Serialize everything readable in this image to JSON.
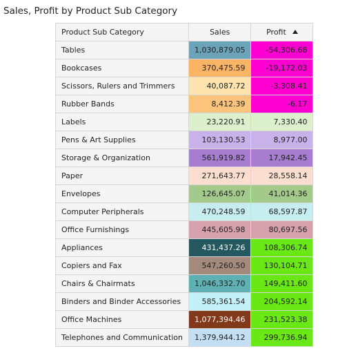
{
  "title": "Sales, Profit by Product Sub Category",
  "columns": {
    "category": "Product Sub Category",
    "sales": "Sales",
    "profit": "Profit"
  },
  "sort": {
    "column": "profit",
    "direction": "ascending",
    "icon": "sort-ascending-icon"
  },
  "rows": [
    {
      "category": "Tables",
      "sales": "1,030,879.05",
      "profit": "-54,306.68",
      "sales_color": "#6ba3b8",
      "profit_color": "#ff00d0",
      "sales_text_color": "#222222",
      "profit_text_color": "#222222"
    },
    {
      "category": "Bookcases",
      "sales": "370,475.59",
      "profit": "-19,172.03",
      "sales_color": "#fbb366",
      "profit_color": "#ff00d0",
      "sales_text_color": "#222222",
      "profit_text_color": "#222222"
    },
    {
      "category": "Scissors, Rulers and Trimmers",
      "sales": "40,087.72",
      "profit": "-3,308.41",
      "sales_color": "#fde4ae",
      "profit_color": "#ff00d0",
      "sales_text_color": "#222222",
      "profit_text_color": "#222222"
    },
    {
      "category": "Rubber Bands",
      "sales": "8,412.39",
      "profit": "-6.17",
      "sales_color": "#fdc47d",
      "profit_color": "#ff00d0",
      "sales_text_color": "#222222",
      "profit_text_color": "#222222"
    },
    {
      "category": "Labels",
      "sales": "23,220.91",
      "profit": "7,330.40",
      "sales_color": "#dcf0cd",
      "profit_color": "#dcf0cd",
      "sales_text_color": "#222222",
      "profit_text_color": "#222222"
    },
    {
      "category": "Pens & Art Supplies",
      "sales": "103,130.53",
      "profit": "8,977.00",
      "sales_color": "#c9b1ea",
      "profit_color": "#c9b1ea",
      "sales_text_color": "#222222",
      "profit_text_color": "#222222"
    },
    {
      "category": "Storage & Organization",
      "sales": "561,919.82",
      "profit": "17,942.45",
      "sales_color": "#a77dd0",
      "profit_color": "#a77dd0",
      "sales_text_color": "#222222",
      "profit_text_color": "#222222"
    },
    {
      "category": "Paper",
      "sales": "271,643.77",
      "profit": "28,558.14",
      "sales_color": "#fbdecf",
      "profit_color": "#fbdecf",
      "sales_text_color": "#222222",
      "profit_text_color": "#222222"
    },
    {
      "category": "Envelopes",
      "sales": "126,645.07",
      "profit": "41,014.36",
      "sales_color": "#a3c98b",
      "profit_color": "#a3c98b",
      "sales_text_color": "#222222",
      "profit_text_color": "#222222"
    },
    {
      "category": "Computer Peripherals",
      "sales": "470,248.59",
      "profit": "68,597.87",
      "sales_color": "#c6eef0",
      "profit_color": "#c6eef0",
      "sales_text_color": "#222222",
      "profit_text_color": "#222222"
    },
    {
      "category": "Office Furnishings",
      "sales": "445,605.98",
      "profit": "80,697.56",
      "sales_color": "#d6a1ac",
      "profit_color": "#d6a1ac",
      "sales_text_color": "#222222",
      "profit_text_color": "#222222"
    },
    {
      "category": "Appliances",
      "sales": "431,437.26",
      "profit": "108,306.74",
      "sales_color": "#24585f",
      "profit_color": "#6ae816",
      "sales_text_color": "#ffffff",
      "profit_text_color": "#222222"
    },
    {
      "category": "Copiers and Fax",
      "sales": "547,260.50",
      "profit": "130,104.71",
      "sales_color": "#a48a7d",
      "profit_color": "#6ae816",
      "sales_text_color": "#222222",
      "profit_text_color": "#222222"
    },
    {
      "category": "Chairs & Chairmats",
      "sales": "1,046,332.70",
      "profit": "149,411.60",
      "sales_color": "#5fb0b2",
      "profit_color": "#6ae816",
      "sales_text_color": "#222222",
      "profit_text_color": "#222222"
    },
    {
      "category": "Binders and Binder Accessories",
      "sales": "585,361.54",
      "profit": "204,592.14",
      "sales_color": "#c4f0fa",
      "profit_color": "#6ae816",
      "sales_text_color": "#222222",
      "profit_text_color": "#222222"
    },
    {
      "category": "Office Machines",
      "sales": "1,077,394.46",
      "profit": "231,523.38",
      "sales_color": "#82391a",
      "profit_color": "#6ae816",
      "sales_text_color": "#ffffff",
      "profit_text_color": "#222222"
    },
    {
      "category": "Telephones and Communication",
      "sales": "1,379,944.12",
      "profit": "299,736.94",
      "sales_color": "#c2dff3",
      "profit_color": "#6ae816",
      "sales_text_color": "#222222",
      "profit_text_color": "#222222"
    }
  ]
}
